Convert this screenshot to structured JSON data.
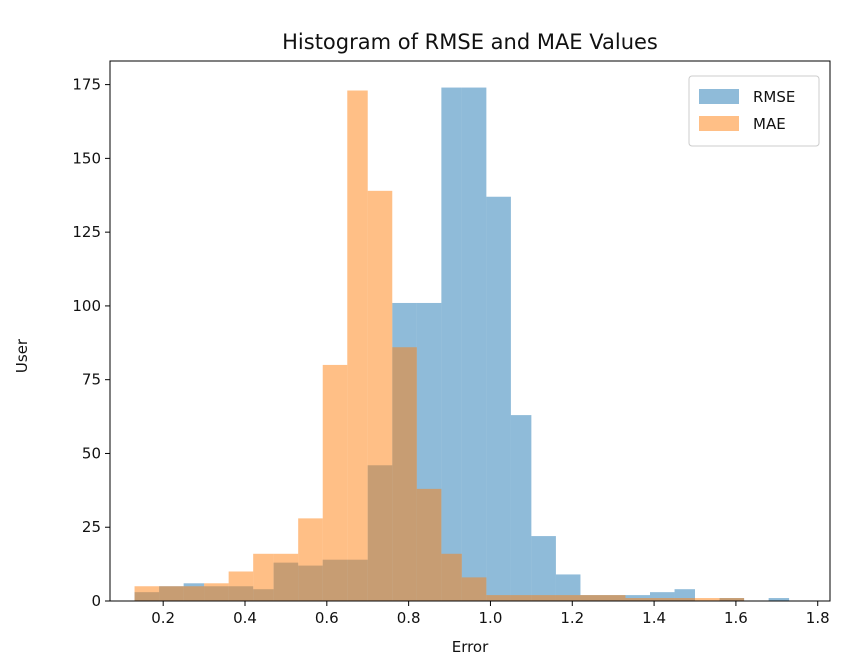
{
  "chart_data": {
    "type": "bar",
    "title": "Histogram of RMSE and MAE Values",
    "xlabel": "Error",
    "ylabel": "User",
    "xlim": [
      0.07,
      1.83
    ],
    "ylim": [
      0,
      183
    ],
    "xticks": [
      0.2,
      0.4,
      0.6,
      0.8,
      1.0,
      1.2,
      1.4,
      1.6,
      1.8
    ],
    "xtick_labels": [
      "0.2",
      "0.4",
      "0.6",
      "0.8",
      "1.0",
      "1.2",
      "1.4",
      "1.6",
      "1.8"
    ],
    "yticks": [
      0,
      25,
      50,
      75,
      100,
      125,
      150,
      175
    ],
    "ytick_labels": [
      "0",
      "25",
      "50",
      "75",
      "100",
      "125",
      "150",
      "175"
    ],
    "grid": false,
    "legend_position": "top-right",
    "series": [
      {
        "name": "RMSE",
        "color": "#1f77b4",
        "opacity": 0.5,
        "bins": [
          {
            "x0": 0.13,
            "x1": 0.19,
            "y": 3
          },
          {
            "x0": 0.19,
            "x1": 0.25,
            "y": 5
          },
          {
            "x0": 0.25,
            "x1": 0.3,
            "y": 6
          },
          {
            "x0": 0.3,
            "x1": 0.36,
            "y": 5
          },
          {
            "x0": 0.36,
            "x1": 0.42,
            "y": 5
          },
          {
            "x0": 0.42,
            "x1": 0.47,
            "y": 4
          },
          {
            "x0": 0.47,
            "x1": 0.53,
            "y": 13
          },
          {
            "x0": 0.53,
            "x1": 0.59,
            "y": 12
          },
          {
            "x0": 0.59,
            "x1": 0.65,
            "y": 14
          },
          {
            "x0": 0.65,
            "x1": 0.7,
            "y": 14
          },
          {
            "x0": 0.7,
            "x1": 0.76,
            "y": 46
          },
          {
            "x0": 0.76,
            "x1": 0.82,
            "y": 101
          },
          {
            "x0": 0.82,
            "x1": 0.88,
            "y": 101
          },
          {
            "x0": 0.88,
            "x1": 0.93,
            "y": 174
          },
          {
            "x0": 0.93,
            "x1": 0.99,
            "y": 174
          },
          {
            "x0": 0.99,
            "x1": 1.05,
            "y": 137
          },
          {
            "x0": 1.05,
            "x1": 1.1,
            "y": 63
          },
          {
            "x0": 1.1,
            "x1": 1.16,
            "y": 22
          },
          {
            "x0": 1.16,
            "x1": 1.22,
            "y": 9
          },
          {
            "x0": 1.22,
            "x1": 1.28,
            "y": 2
          },
          {
            "x0": 1.28,
            "x1": 1.33,
            "y": 2
          },
          {
            "x0": 1.33,
            "x1": 1.39,
            "y": 2
          },
          {
            "x0": 1.39,
            "x1": 1.45,
            "y": 3
          },
          {
            "x0": 1.45,
            "x1": 1.5,
            "y": 4
          },
          {
            "x0": 1.5,
            "x1": 1.56,
            "y": 0
          },
          {
            "x0": 1.56,
            "x1": 1.62,
            "y": 1
          },
          {
            "x0": 1.62,
            "x1": 1.68,
            "y": 0
          },
          {
            "x0": 1.68,
            "x1": 1.73,
            "y": 1
          }
        ]
      },
      {
        "name": "MAE",
        "color": "#ff7f0e",
        "opacity": 0.5,
        "bins": [
          {
            "x0": 0.13,
            "x1": 0.19,
            "y": 5
          },
          {
            "x0": 0.19,
            "x1": 0.25,
            "y": 5
          },
          {
            "x0": 0.25,
            "x1": 0.3,
            "y": 5
          },
          {
            "x0": 0.3,
            "x1": 0.36,
            "y": 6
          },
          {
            "x0": 0.36,
            "x1": 0.42,
            "y": 10
          },
          {
            "x0": 0.42,
            "x1": 0.47,
            "y": 16
          },
          {
            "x0": 0.47,
            "x1": 0.53,
            "y": 16
          },
          {
            "x0": 0.53,
            "x1": 0.59,
            "y": 28
          },
          {
            "x0": 0.59,
            "x1": 0.65,
            "y": 80
          },
          {
            "x0": 0.65,
            "x1": 0.7,
            "y": 173
          },
          {
            "x0": 0.7,
            "x1": 0.76,
            "y": 139
          },
          {
            "x0": 0.76,
            "x1": 0.82,
            "y": 86
          },
          {
            "x0": 0.82,
            "x1": 0.88,
            "y": 38
          },
          {
            "x0": 0.88,
            "x1": 0.93,
            "y": 16
          },
          {
            "x0": 0.93,
            "x1": 0.99,
            "y": 8
          },
          {
            "x0": 0.99,
            "x1": 1.05,
            "y": 2
          },
          {
            "x0": 1.05,
            "x1": 1.1,
            "y": 2
          },
          {
            "x0": 1.1,
            "x1": 1.16,
            "y": 2
          },
          {
            "x0": 1.16,
            "x1": 1.22,
            "y": 2
          },
          {
            "x0": 1.22,
            "x1": 1.28,
            "y": 2
          },
          {
            "x0": 1.28,
            "x1": 1.33,
            "y": 2
          },
          {
            "x0": 1.33,
            "x1": 1.39,
            "y": 1
          },
          {
            "x0": 1.39,
            "x1": 1.45,
            "y": 1
          },
          {
            "x0": 1.45,
            "x1": 1.5,
            "y": 1
          },
          {
            "x0": 1.5,
            "x1": 1.56,
            "y": 1
          },
          {
            "x0": 1.56,
            "x1": 1.62,
            "y": 1
          },
          {
            "x0": 1.62,
            "x1": 1.68,
            "y": 0
          },
          {
            "x0": 1.68,
            "x1": 1.73,
            "y": 0
          }
        ]
      }
    ]
  }
}
